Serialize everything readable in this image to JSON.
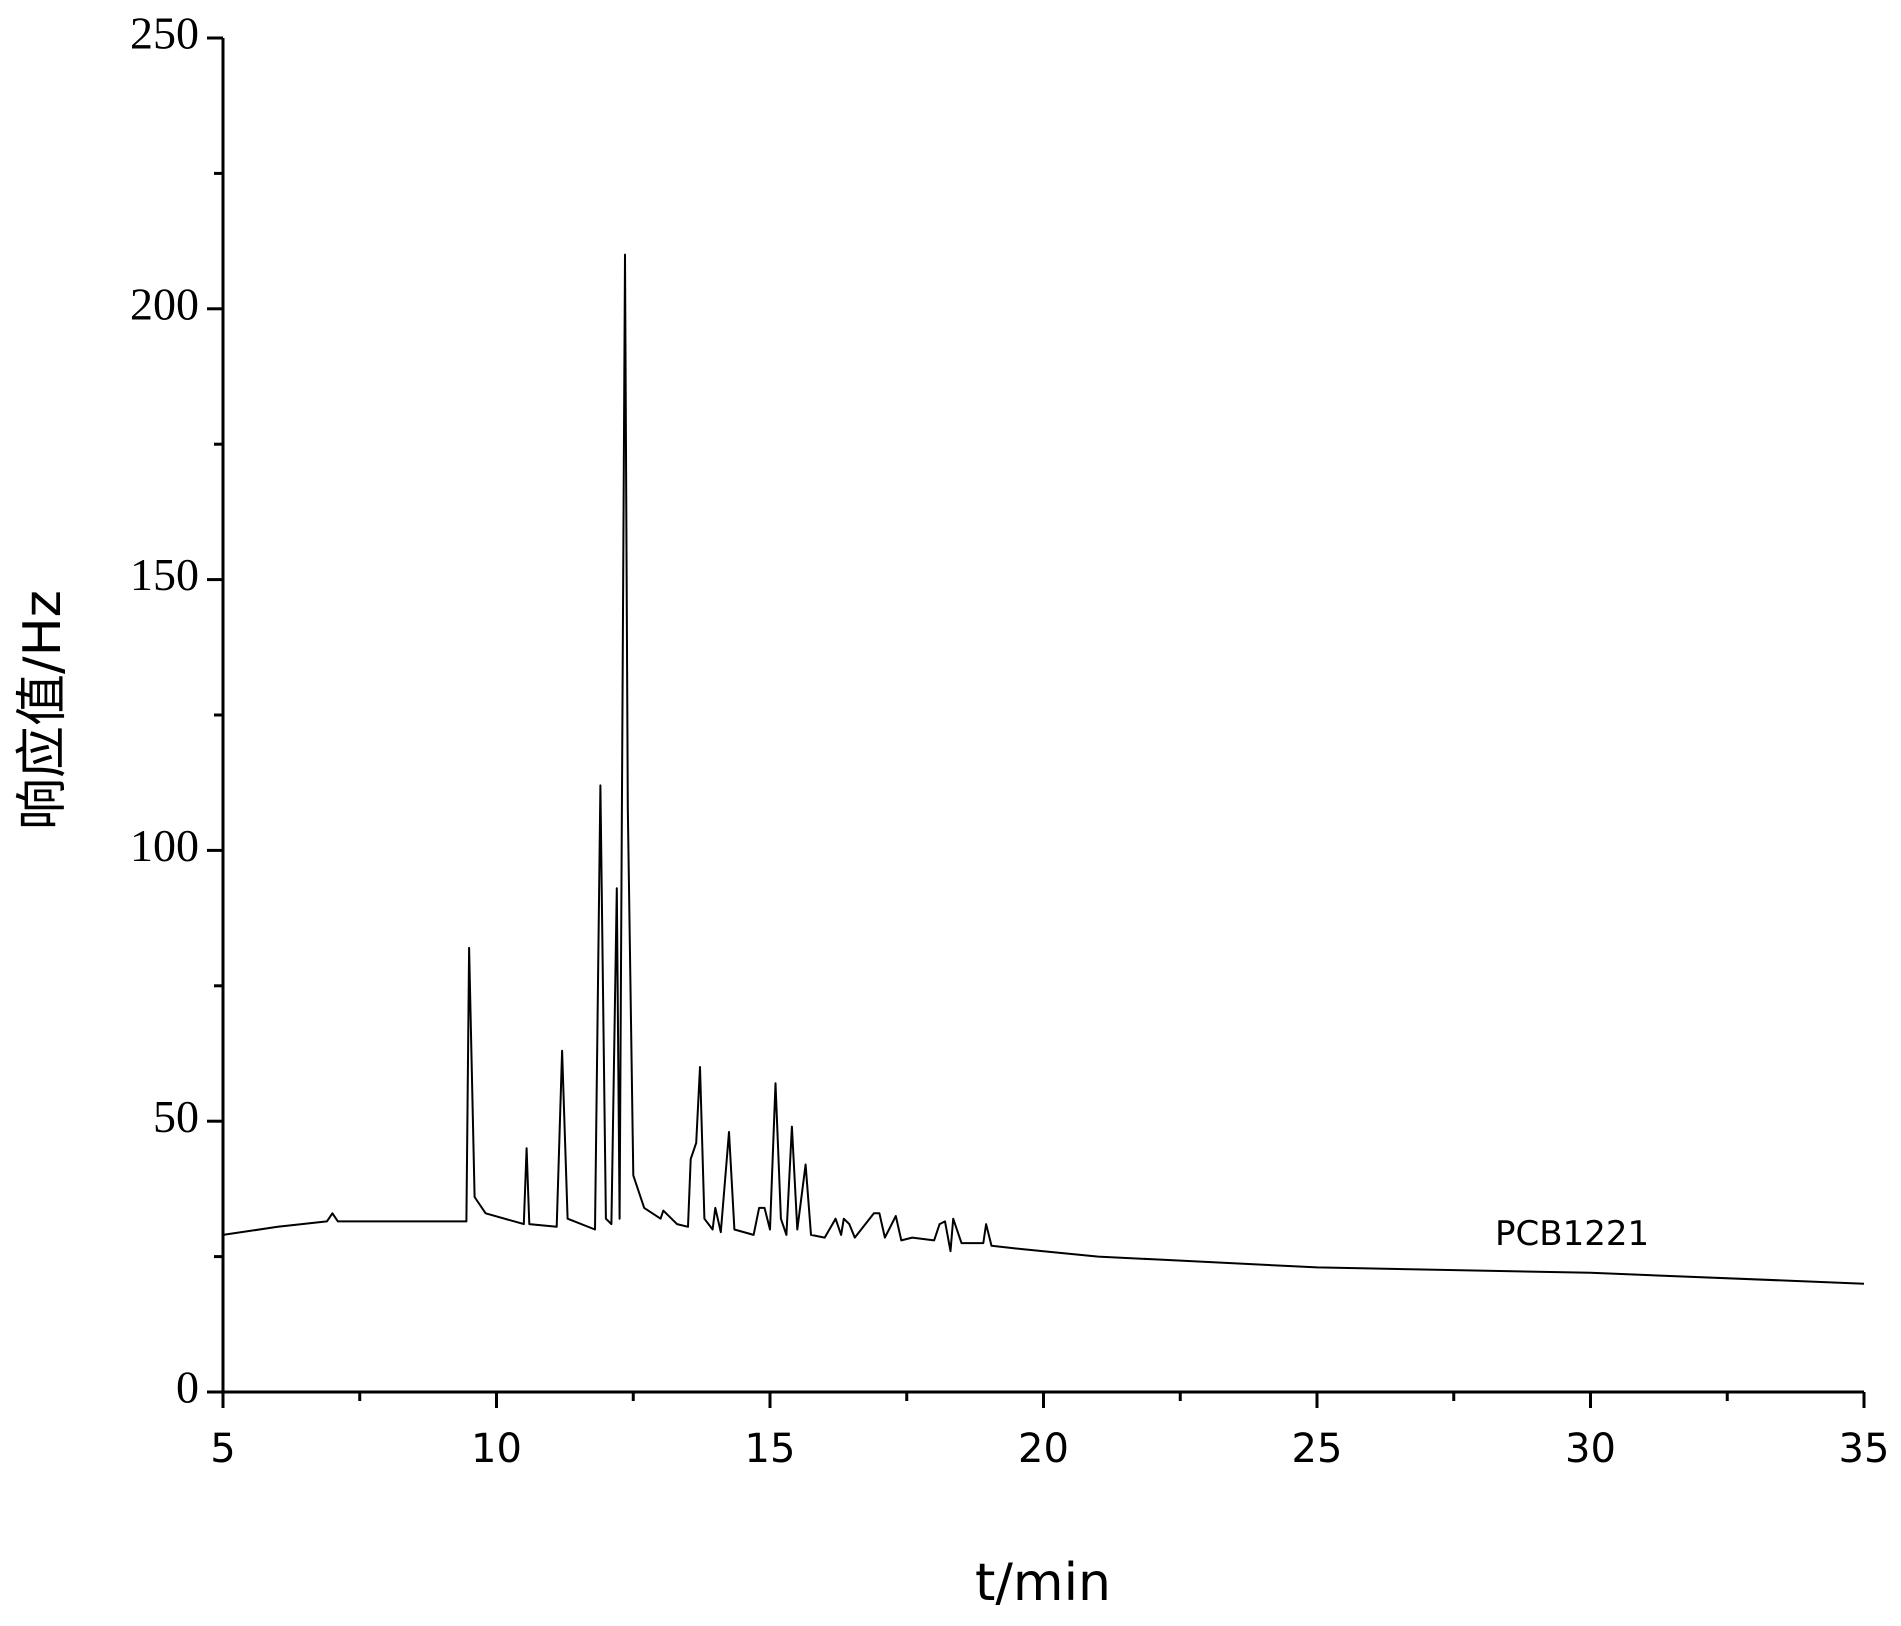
{
  "chart_data": {
    "type": "line",
    "xlabel": "t/min",
    "ylabel": "响应值/Hz",
    "xlim": [
      5,
      35
    ],
    "xticks": [
      5,
      10,
      15,
      20,
      25,
      30,
      35
    ],
    "xminorticks": [
      7.5,
      12.5,
      17.5,
      22.5,
      27.5,
      32.5
    ],
    "ylim": [
      0,
      250
    ],
    "yticks": [
      0,
      50,
      100,
      150,
      200,
      250
    ],
    "yminorticks": [
      25,
      75,
      125,
      175,
      225
    ],
    "series": [
      {
        "name": "PCB1221",
        "color": "#000000",
        "x": [
          5,
          6,
          6.9,
          7.0,
          7.1,
          8,
          9,
          9.45,
          9.5,
          9.6,
          9.8,
          10.5,
          10.55,
          10.6,
          11.1,
          11.2,
          11.3,
          11.8,
          11.9,
          12.0,
          12.1,
          12.2,
          12.25,
          12.35,
          12.4,
          12.5,
          12.7,
          13.0,
          13.05,
          13.3,
          13.5,
          13.55,
          13.65,
          13.72,
          13.8,
          13.95,
          14.0,
          14.1,
          14.25,
          14.35,
          14.7,
          14.8,
          14.9,
          15.0,
          15.1,
          15.2,
          15.3,
          15.4,
          15.5,
          15.65,
          15.75,
          16.0,
          16.2,
          16.3,
          16.35,
          16.45,
          16.55,
          16.9,
          17.0,
          17.1,
          17.3,
          17.4,
          17.6,
          18.0,
          18.1,
          18.2,
          18.3,
          18.35,
          18.5,
          18.9,
          18.95,
          19.05,
          19.5,
          20,
          21,
          22,
          25,
          30,
          35
        ],
        "values": [
          29,
          30.5,
          31.5,
          33,
          31.5,
          31.5,
          31.5,
          31.5,
          82,
          36,
          33,
          31,
          45,
          31,
          30.5,
          63,
          32,
          30,
          112,
          32,
          31,
          93,
          32,
          210,
          108,
          40,
          34,
          32,
          33.5,
          31,
          30.5,
          43,
          46,
          60,
          32,
          30,
          34,
          29.5,
          48,
          30,
          29,
          34,
          34,
          30,
          57,
          32,
          29,
          49,
          30,
          42,
          29,
          28.5,
          32,
          29,
          32,
          31,
          28.5,
          33,
          33,
          28.5,
          32.5,
          28,
          28.5,
          28,
          31,
          31.5,
          26,
          32,
          27.5,
          27.5,
          31,
          27,
          26.5,
          26,
          25,
          24.5,
          23,
          22,
          20
        ]
      }
    ]
  }
}
